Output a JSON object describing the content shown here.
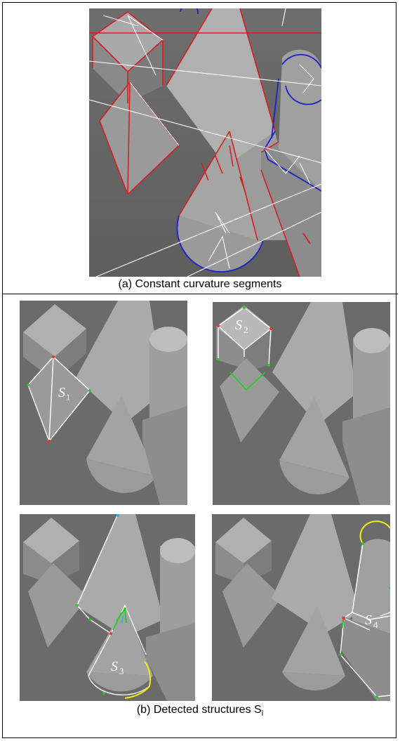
{
  "caption_a": "(a) Constant curvature segments",
  "caption_b_main": "(b) Detected structures S",
  "caption_b_sub": "i",
  "structures": [
    {
      "symbol": "S",
      "index": "1"
    },
    {
      "symbol": "S",
      "index": "2"
    },
    {
      "symbol": "S",
      "index": "3"
    },
    {
      "symbol": "S",
      "index": "4"
    }
  ],
  "colors": {
    "line_segments": "#d42020",
    "arc_segments": "#1a22c8",
    "connections": "#ffffff",
    "green_edges": "#22cc22",
    "yellow_arcs": "#eeee10"
  }
}
